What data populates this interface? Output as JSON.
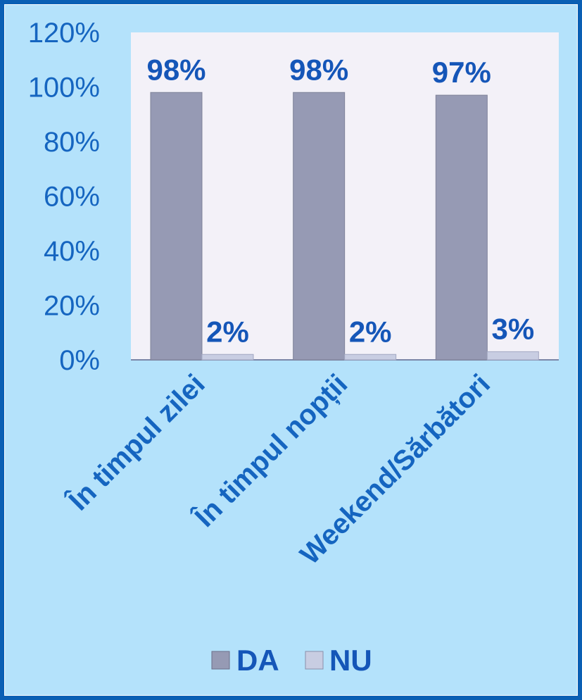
{
  "chart_data": {
    "type": "bar",
    "title": "",
    "xlabel": "",
    "ylabel": "",
    "categories": [
      "În timpul zilei",
      "În timpul nopții",
      "Weekend/Sărbători"
    ],
    "series": [
      {
        "name": "DA",
        "values": [
          98,
          98,
          97
        ],
        "labels": [
          "98%",
          "98%",
          "97%"
        ],
        "color": "#969ab4"
      },
      {
        "name": "NU",
        "values": [
          2,
          2,
          3
        ],
        "labels": [
          "2%",
          "2%",
          "3%"
        ],
        "color": "#c8cde2"
      }
    ],
    "yticks": [
      "0%",
      "20%",
      "40%",
      "60%",
      "80%",
      "100%",
      "120%"
    ],
    "ylim": [
      0,
      120
    ],
    "grid": false,
    "legend": "bottom",
    "plot_background": "#f3f1f8",
    "background": "#b4e2fb",
    "border_color": "#0a5fb4",
    "text_color": "#1565c0"
  }
}
